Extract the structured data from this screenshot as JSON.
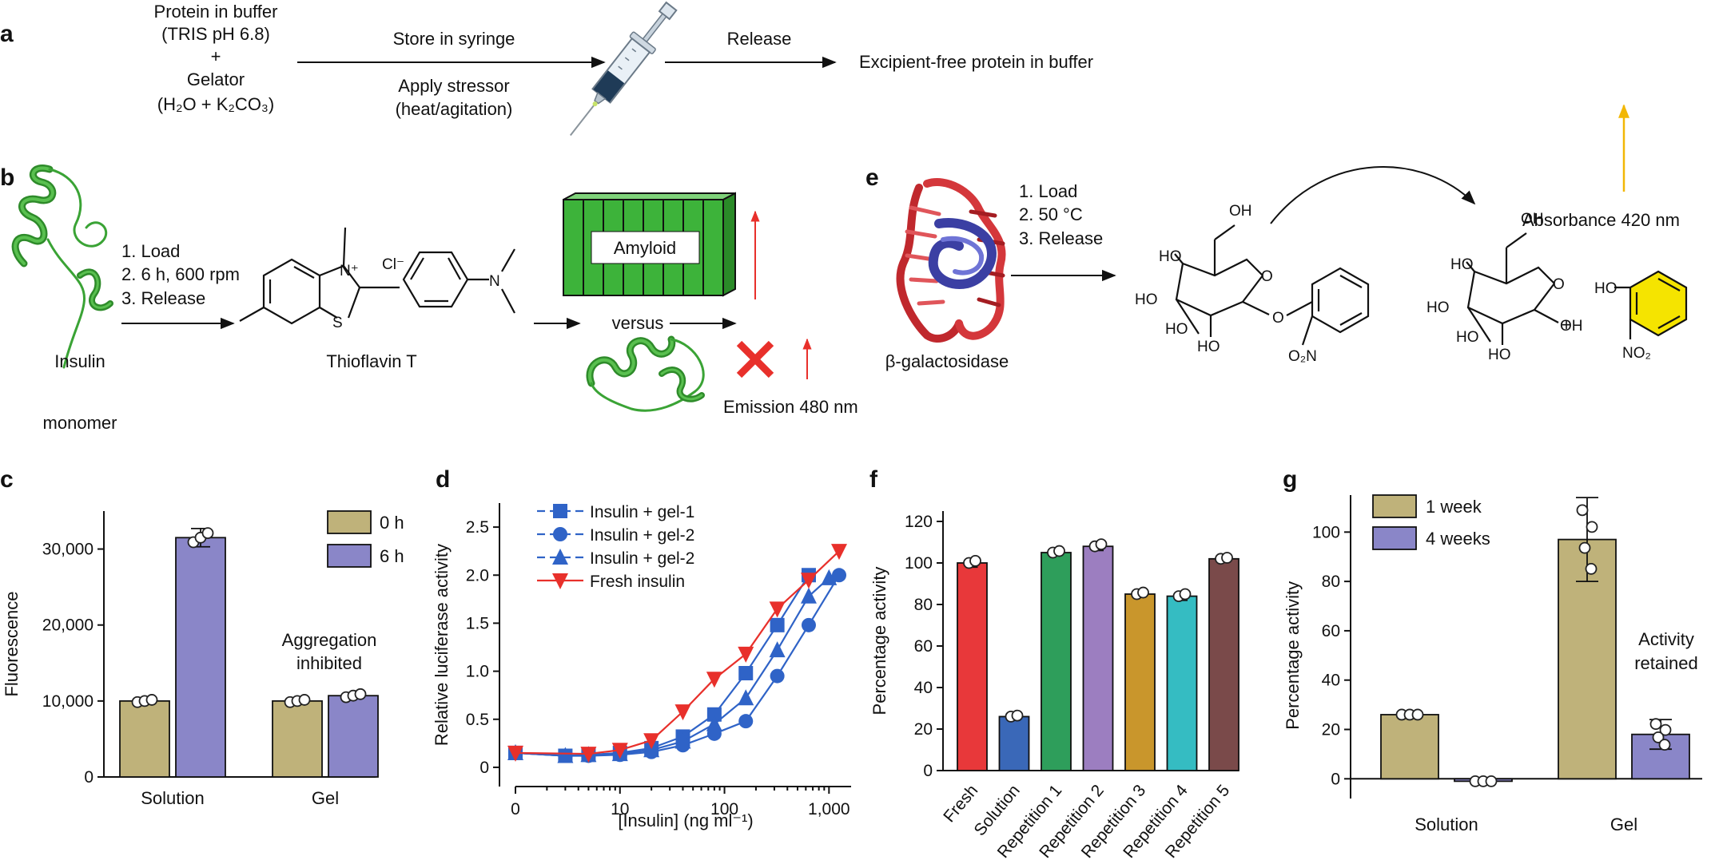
{
  "colors": {
    "khaki": "#bfb27a",
    "lavender": "#8a86c8",
    "blue": "#2f63c7",
    "red": "#e8302b",
    "amber": "#f2b705",
    "green_protein": "#3aa335",
    "amyloid_green": "#3db33a"
  },
  "panel_a": {
    "label": "a",
    "protein_line1": "Protein in buffer",
    "protein_line2": "(TRIS pH 6.8)",
    "plus": "+",
    "gelator_line1": "Gelator",
    "gelator_line2": "(H₂O + K₂CO₃)",
    "store": "Store in syringe",
    "stress_line1": "Apply stressor",
    "stress_line2": "(heat/agitation)",
    "release": "Release",
    "result": "Excipient-free protein in buffer"
  },
  "panel_b": {
    "label": "b",
    "step1": "1. Load",
    "step2": "2. 6 h, 600 rpm",
    "step3": "3. Release",
    "insulin_line1": "Insulin",
    "insulin_line2": "monomer",
    "dye": "Thioflavin T",
    "cl": "Cl⁻",
    "nplus": "N⁺",
    "s_atom": "S",
    "n_atom": "N",
    "amyloid": "Amyloid",
    "versus": "versus",
    "emission": "Emission 480 nm"
  },
  "panel_e": {
    "label": "e",
    "step1": "1. Load",
    "step2": "2. 50 °C",
    "step3": "3. Release",
    "enzyme": "β-galactosidase",
    "absorbance": "Absorbance 420 nm",
    "plus": "+",
    "oh": "OH",
    "ho": "HO",
    "o": "O",
    "no2": "NO₂",
    "o2n": "O₂N"
  },
  "chart_data": [
    {
      "panel": "c",
      "type": "bar",
      "categories": [
        "Solution",
        "Gel"
      ],
      "ylabel": "Fluorescence",
      "ylim": [
        0,
        35000
      ],
      "yticks": [
        "0",
        "10,000",
        "20,000",
        "30,000"
      ],
      "ytick_values": [
        0,
        10000,
        20000,
        30000
      ],
      "series": [
        {
          "name": "0 h",
          "values": [
            10000,
            10000
          ],
          "err": [
            300,
            300
          ]
        },
        {
          "name": "6 h",
          "values": [
            31500,
            10700
          ],
          "err": [
            1200,
            400
          ]
        }
      ],
      "annotation_line1": "Aggregation",
      "annotation_line2": "inhibited",
      "legend_position": "top-right"
    },
    {
      "panel": "d",
      "type": "line",
      "xscale": "log",
      "xlabel": "[Insulin] (ng ml⁻¹)",
      "ylabel": "Relative luciferase activity",
      "xticks": [
        "0",
        "10",
        "100",
        "1,000"
      ],
      "xtick_values": [
        1,
        10,
        100,
        1000
      ],
      "yticks": [
        "0",
        "0.5",
        "1.0",
        "1.5",
        "2.0",
        "2.5"
      ],
      "ytick_values": [
        0,
        0.5,
        1.0,
        1.5,
        2.0,
        2.5
      ],
      "ylim": [
        -0.2,
        2.75
      ],
      "series": [
        {
          "name": "Insulin + gel-1",
          "marker": "square",
          "x": [
            1,
            3,
            5,
            10,
            20,
            40,
            80,
            160,
            320,
            640
          ],
          "y": [
            0.15,
            0.12,
            0.13,
            0.15,
            0.2,
            0.32,
            0.55,
            0.98,
            1.48,
            2.0
          ]
        },
        {
          "name": "Insulin + gel-2",
          "marker": "circle",
          "x": [
            1,
            3,
            5,
            10,
            20,
            40,
            80,
            160,
            320,
            640,
            1250
          ],
          "y": [
            0.15,
            0.12,
            0.12,
            0.13,
            0.16,
            0.23,
            0.35,
            0.48,
            0.95,
            1.48,
            2.0
          ]
        },
        {
          "name": "Insulin + gel-2",
          "marker": "triangle",
          "x": [
            1,
            3,
            5,
            10,
            20,
            40,
            80,
            160,
            320,
            640,
            1000
          ],
          "y": [
            0.15,
            0.12,
            0.13,
            0.14,
            0.18,
            0.27,
            0.45,
            0.72,
            1.22,
            1.78,
            1.97
          ]
        },
        {
          "name": "Fresh insulin",
          "marker": "triangle-down",
          "x": [
            1,
            5,
            10,
            20,
            40,
            80,
            160,
            320,
            640,
            1250
          ],
          "y": [
            0.15,
            0.14,
            0.18,
            0.28,
            0.58,
            0.92,
            1.18,
            1.65,
            1.95,
            2.25
          ]
        }
      ],
      "legend_position": "top-left"
    },
    {
      "panel": "f",
      "type": "bar",
      "categories": [
        "Fresh",
        "Solution",
        "Repetition 1",
        "Repetition 2",
        "Repetition 3",
        "Repetition 4",
        "Repetition 5"
      ],
      "values": [
        100,
        26,
        105,
        108,
        85,
        84,
        102
      ],
      "err": [
        2,
        1,
        1.5,
        2,
        1.5,
        2,
        1
      ],
      "bar_colors": [
        "#e8383a",
        "#3a68b8",
        "#2e9e5b",
        "#9c7ec0",
        "#c9962c",
        "#35bcc2",
        "#7a4a4a"
      ],
      "ylabel": "Percentage activity",
      "ylim": [
        0,
        125
      ],
      "yticks": [
        "0",
        "20",
        "40",
        "60",
        "80",
        "100",
        "120"
      ],
      "ytick_values": [
        0,
        20,
        40,
        60,
        80,
        100,
        120
      ]
    },
    {
      "panel": "g",
      "type": "bar",
      "categories": [
        "Solution",
        "Gel"
      ],
      "series": [
        {
          "name": "1 week",
          "values": [
            26,
            97
          ],
          "err": [
            1,
            17
          ]
        },
        {
          "name": "4 weeks",
          "values": [
            -1,
            18
          ],
          "err": [
            0.5,
            6
          ]
        }
      ],
      "ylabel": "Percentage activity",
      "ylim": [
        -8,
        115
      ],
      "yticks": [
        "0",
        "20",
        "40",
        "60",
        "80",
        "100"
      ],
      "ytick_values": [
        0,
        20,
        40,
        60,
        80,
        100
      ],
      "annotation_line1": "Activity",
      "annotation_line2": "retained",
      "legend_position": "top-left"
    }
  ]
}
